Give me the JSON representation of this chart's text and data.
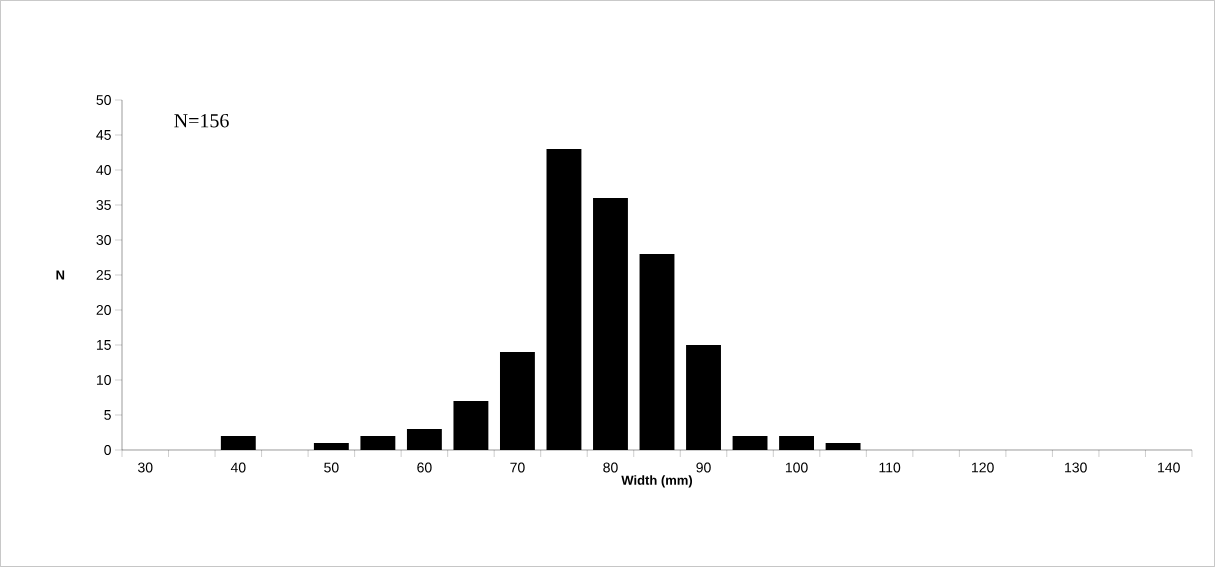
{
  "chart_data": {
    "type": "bar",
    "categories": [
      "30",
      null,
      "40",
      null,
      "50",
      null,
      "60",
      null,
      "70",
      null,
      "80",
      null,
      "90",
      null,
      "100",
      null,
      "110",
      null,
      "120",
      null,
      "130",
      null,
      "140"
    ],
    "values": [
      0,
      0,
      2,
      0,
      1,
      2,
      3,
      7,
      14,
      43,
      36,
      28,
      15,
      2,
      2,
      1,
      0,
      0,
      0,
      0,
      0,
      0,
      0
    ],
    "color": "#000000",
    "xlabel": "Width (mm)",
    "ylabel": "N",
    "ylim": [
      0,
      50
    ],
    "yticks": [
      0,
      5,
      10,
      15,
      20,
      25,
      30,
      35,
      40,
      45,
      50
    ],
    "annotations": [
      "N=156"
    ],
    "grid": false
  }
}
